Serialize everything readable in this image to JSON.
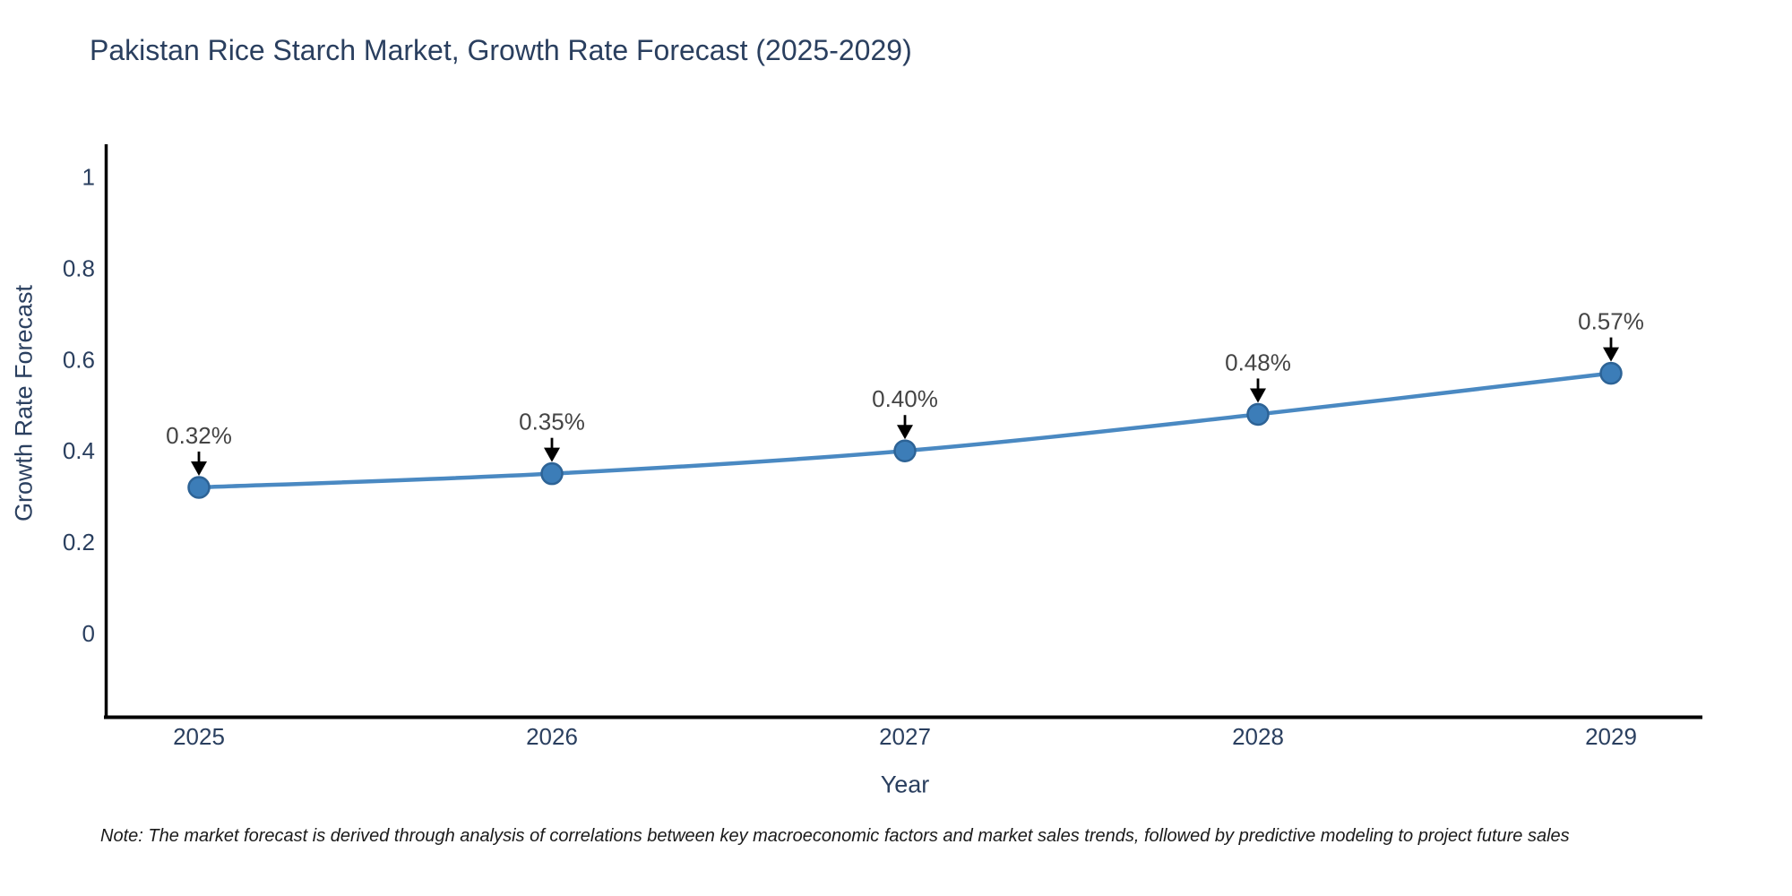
{
  "footnote": "Note: The market forecast is derived through analysis of correlations between key macroeconomic factors and market sales trends, followed by predictive modeling to project future sales",
  "chart_data": {
    "type": "line",
    "title": "Pakistan Rice Starch Market, Growth Rate Forecast (2025-2029)",
    "xlabel": "Year",
    "ylabel": "Growth Rate Forecast",
    "categories": [
      "2025",
      "2026",
      "2027",
      "2028",
      "2029"
    ],
    "series": [
      {
        "name": "Growth Rate Forecast",
        "values": [
          0.32,
          0.35,
          0.4,
          0.48,
          0.57
        ]
      }
    ],
    "point_labels": [
      "0.32%",
      "0.35%",
      "0.40%",
      "0.48%",
      "0.57%"
    ],
    "ytick_labels": [
      "0",
      "0.2",
      "0.4",
      "0.6",
      "0.8",
      "1"
    ],
    "ylim": [
      -0.18,
      1.07
    ],
    "grid": false,
    "legend_position": "none",
    "line_shape": "spline",
    "colors": {
      "line": "#4a89c2",
      "marker_fill": "#3c7db8",
      "marker_edge": "#2d6396",
      "axis": "#000000",
      "axis_text": "#2a3f5f",
      "annotation_text": "#444444",
      "arrow": "#000000",
      "background": "#ffffff"
    }
  }
}
